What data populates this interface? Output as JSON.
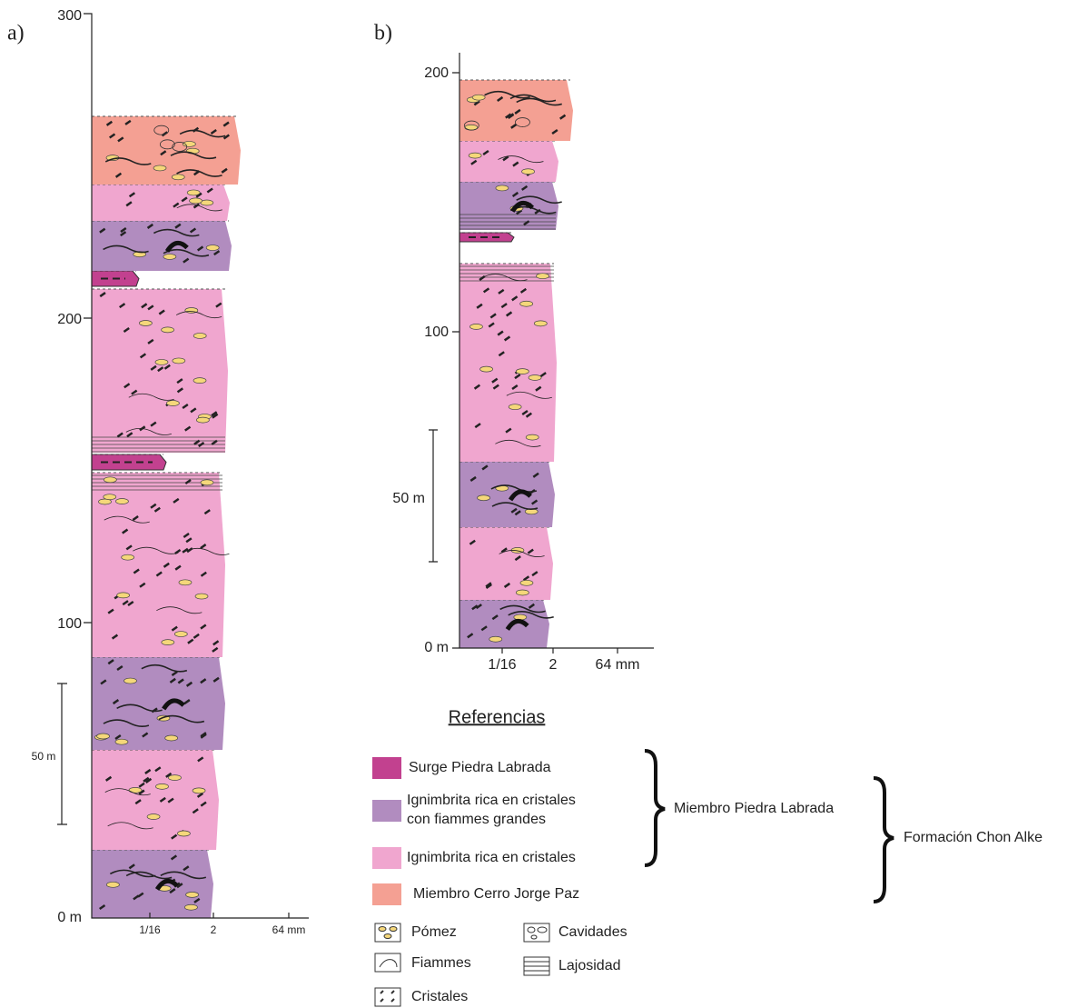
{
  "panels": [
    {
      "label": "a)",
      "depth_ticks": [
        "300",
        "200",
        "100",
        "0 m"
      ],
      "grain_ticks": [
        "1/16",
        "2",
        "64 mm"
      ],
      "scale_bar": "50 m"
    },
    {
      "label": "b)",
      "depth_ticks": [
        "200",
        "100",
        "0 m"
      ],
      "grain_ticks": [
        "1/16",
        "2",
        "64 mm"
      ],
      "scale_bar": "50 m"
    }
  ],
  "references": {
    "title": "Referencias",
    "units": [
      "Surge Piedra Labrada",
      "Ignimbrita rica en cristales con fiammes grandes",
      "Ignimbrita rica en cristales",
      "Miembro Cerro Jorge Paz"
    ],
    "groups": [
      "Miembro Piedra Labrada",
      "Formación Chon Alke"
    ],
    "symbols": [
      "Pómez",
      "Cavidades",
      "Fiammes",
      "Lajosidad",
      "Cristales"
    ]
  }
}
